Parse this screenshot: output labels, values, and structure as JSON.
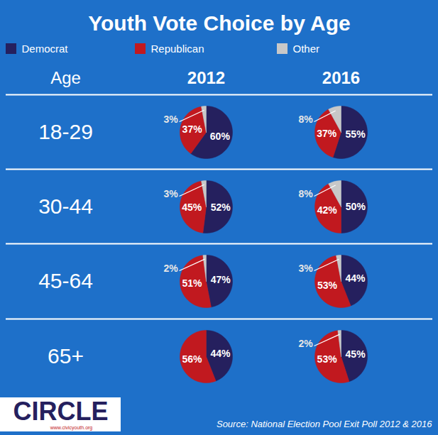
{
  "chart_data": {
    "type": "pie",
    "title": "Youth Vote Choice by Age",
    "legend": "top",
    "data_labels": true,
    "categories": [
      "Democrat",
      "Republican",
      "Other"
    ],
    "colors": [
      "#25205e",
      "#c1191f",
      "#c8c8c8"
    ],
    "row_header": "Age",
    "columns": [
      "2012",
      "2016"
    ],
    "rows": [
      {
        "label": "18-29",
        "pies": [
          {
            "values": [
              60,
              37,
              3
            ],
            "value_labels": [
              "60%",
              "37%",
              "3%"
            ]
          },
          {
            "values": [
              55,
              37,
              8
            ],
            "value_labels": [
              "55%",
              "37%",
              "8%"
            ]
          }
        ]
      },
      {
        "label": "30-44",
        "pies": [
          {
            "values": [
              52,
              45,
              3
            ],
            "value_labels": [
              "52%",
              "45%",
              "3%"
            ]
          },
          {
            "values": [
              50,
              42,
              8
            ],
            "value_labels": [
              "50%",
              "42%",
              "8%"
            ]
          }
        ]
      },
      {
        "label": "45-64",
        "pies": [
          {
            "values": [
              47,
              51,
              2
            ],
            "value_labels": [
              "47%",
              "51%",
              "2%"
            ]
          },
          {
            "values": [
              44,
              53,
              3
            ],
            "value_labels": [
              "44%",
              "53%",
              "3%"
            ]
          }
        ]
      },
      {
        "label": "65+",
        "pies": [
          {
            "values": [
              44,
              56,
              null
            ],
            "value_labels": [
              "44%",
              "56%",
              null
            ]
          },
          {
            "values": [
              45,
              53,
              2
            ],
            "value_labels": [
              "45%",
              "53%",
              "2%"
            ]
          }
        ]
      }
    ],
    "source": "Source: National Election Pool Exit Poll 2012 & 2016",
    "logo": "CIRCLE",
    "logo_url": "www.civicyouth.org"
  }
}
